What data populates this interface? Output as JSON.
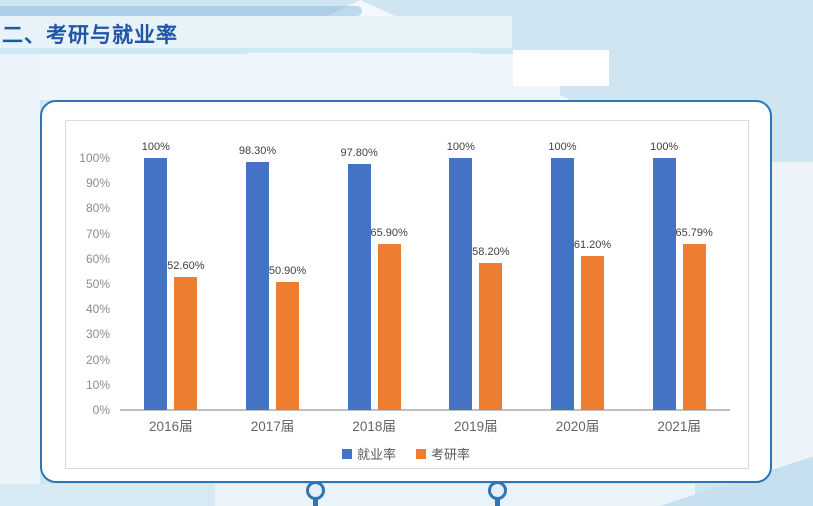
{
  "slide": {
    "title": "二、考研与就业率"
  },
  "chart_data": {
    "type": "bar",
    "title": "",
    "categories": [
      "2016届",
      "2017届",
      "2018届",
      "2019届",
      "2020届",
      "2021届"
    ],
    "series": [
      {
        "name": "就业率",
        "color": "#4472C4",
        "values": [
          100,
          98.3,
          97.8,
          100,
          100,
          100
        ],
        "data_labels": [
          "100%",
          "98.30%",
          "97.80%",
          "100%",
          "100%",
          "100%"
        ]
      },
      {
        "name": "考研率",
        "color": "#ED7D31",
        "values": [
          52.6,
          50.9,
          65.9,
          58.2,
          61.2,
          65.79
        ],
        "data_labels": [
          "52.60%",
          "50.90%",
          "65.90%",
          "58.20%",
          "61.20%",
          "65.79%"
        ]
      }
    ],
    "xlabel": "",
    "ylabel": "",
    "ylim": [
      0,
      100
    ],
    "yticks": [
      "0%",
      "10%",
      "20%",
      "30%",
      "40%",
      "50%",
      "60%",
      "70%",
      "80%",
      "90%",
      "100%"
    ],
    "grid": false,
    "legend_position": "bottom-center"
  },
  "colors": {
    "bar_blue": "#4472C4",
    "bar_orange": "#ED7D31",
    "card_border": "#2E75B6",
    "title_text": "#2156A5",
    "title_underline": "#CEE8F7"
  }
}
